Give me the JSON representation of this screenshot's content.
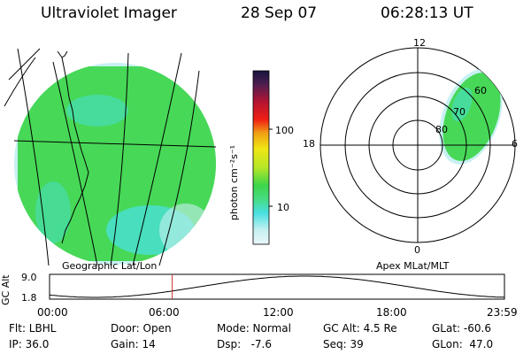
{
  "header": {
    "instrument": "Ultraviolet Imager",
    "date": "28 Sep 07",
    "time": "06:28:13 UT"
  },
  "left_panel": {
    "caption": "Geographic Lat/Lon"
  },
  "right_panel": {
    "caption": "Apex MLat/MLT",
    "mlt_labels": {
      "top": "12",
      "left": "18",
      "right": "6",
      "bottom": "0"
    },
    "mlat_labels": [
      "60",
      "70",
      "80"
    ]
  },
  "colorbar": {
    "label": "photon cm⁻²s⁻¹",
    "ticks": [
      "100",
      "10"
    ]
  },
  "altitude_plot": {
    "ylabel": "GC Alt",
    "yticks": [
      "9.0",
      "1.8"
    ],
    "xticks": [
      "00:00",
      "06:00",
      "12:00",
      "18:00",
      "23:59"
    ],
    "marker_time": "06:28"
  },
  "info": {
    "flt": "Flt: LBHL",
    "ip": "IP: 36.0",
    "door": "Door: Open",
    "gain": "Gain: 14",
    "mode": "Mode: Normal",
    "dsp": "Dsp:   -7.6",
    "gcalt": "GC Alt: 4.5 Re",
    "seq": "Seq: 39",
    "glat": "GLat: -60.6",
    "glon": "GLon:  47.0"
  },
  "colors": {
    "aurora_green": "#3cd64a",
    "cyan": "#48e0e0",
    "pale_cyan": "#c8f0f2",
    "marker": "#c83232"
  }
}
